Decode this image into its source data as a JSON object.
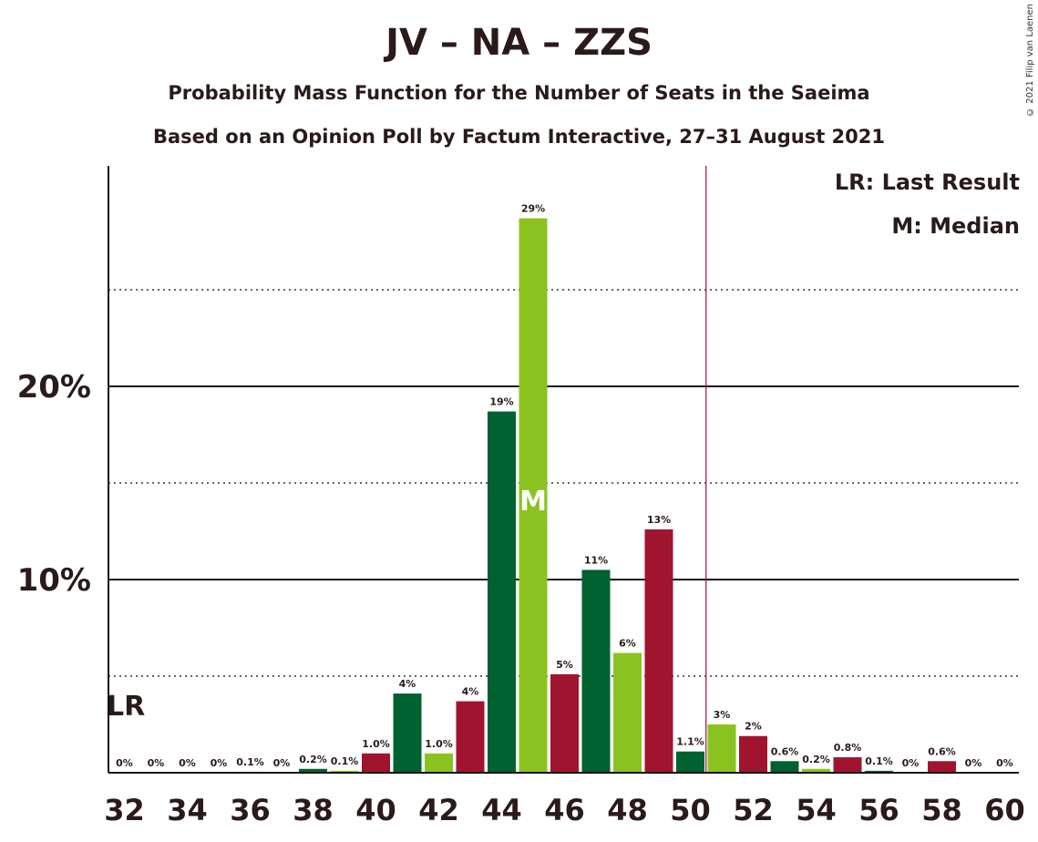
{
  "title": "JV – NA – ZZS",
  "subtitle": "Probability Mass Function for the Number of Seats in the Saeima",
  "subtitle2": "Based on an Opinion Poll by Factum Interactive, 27–31 August 2021",
  "copyright": "© 2021 Filip van Laenen",
  "legend": {
    "lr": "LR: Last Result",
    "median": "M: Median"
  },
  "colors": {
    "dark_green": "#006131",
    "light_green": "#8ac31f",
    "crimson": "#a0142f",
    "threshold_line": "#a0142f"
  },
  "chart_data": {
    "type": "bar",
    "seats": [
      32,
      33,
      34,
      35,
      36,
      37,
      38,
      39,
      40,
      41,
      42,
      43,
      44,
      45,
      46,
      47,
      48,
      49,
      50,
      51,
      52,
      53,
      54,
      55,
      56,
      57,
      58,
      59,
      60
    ],
    "values": [
      0,
      0,
      0,
      0,
      0.05,
      0,
      0.2,
      0.1,
      1.0,
      4.1,
      1.0,
      3.7,
      18.7,
      28.7,
      5.1,
      10.5,
      6.2,
      12.6,
      1.1,
      2.5,
      1.9,
      0.6,
      0.2,
      0.8,
      0.1,
      0,
      0.6,
      0,
      0
    ],
    "labels": [
      "0%",
      "0%",
      "0%",
      "0%",
      "0.1%",
      "0%",
      "0.2%",
      "0.1%",
      "1.0%",
      "4%",
      "1.0%",
      "4%",
      "19%",
      "29%",
      "5%",
      "11%",
      "6%",
      "13%",
      "1.1%",
      "3%",
      "2%",
      "0.6%",
      "0.2%",
      "0.8%",
      "0.1%",
      "0%",
      "0.6%",
      "0%",
      "0%"
    ],
    "bar_colors": [
      "dark_green",
      "light_green",
      "crimson",
      "dark_green",
      "light_green",
      "crimson",
      "dark_green",
      "light_green",
      "crimson",
      "dark_green",
      "light_green",
      "crimson",
      "dark_green",
      "light_green",
      "crimson",
      "dark_green",
      "light_green",
      "crimson",
      "dark_green",
      "light_green",
      "crimson",
      "dark_green",
      "light_green",
      "crimson",
      "dark_green",
      "light_green",
      "crimson",
      "dark_green",
      "light_green"
    ],
    "x_ticks": [
      "32",
      "34",
      "36",
      "38",
      "40",
      "42",
      "44",
      "46",
      "48",
      "50",
      "52",
      "54",
      "56",
      "58",
      "60"
    ],
    "y_ticks": [
      "10%",
      "20%"
    ],
    "ylim": [
      0,
      31
    ],
    "gridlines_solid": [
      10,
      20
    ],
    "gridlines_dotted": [
      5,
      15,
      25
    ],
    "last_result_seat": 32,
    "last_result_label": "LR",
    "median_seat": 45,
    "median_label": "M",
    "majority_threshold_x": 50.5
  }
}
